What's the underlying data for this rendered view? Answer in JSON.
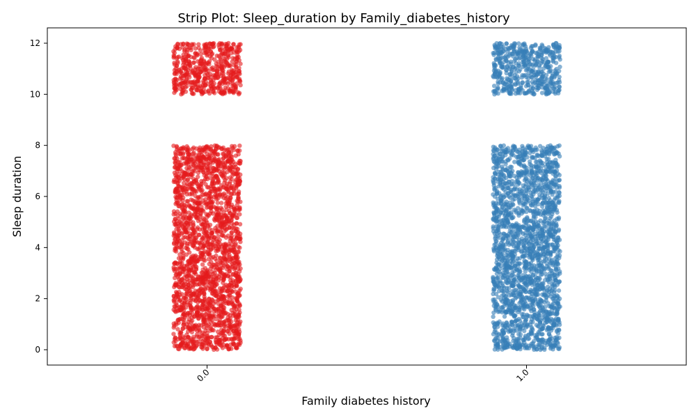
{
  "chart_data": {
    "type": "scatter",
    "subtype": "strip",
    "title": "Strip Plot: Sleep_duration by Family_diabetes_history",
    "xlabel": "Family diabetes history",
    "ylabel": "Sleep duration",
    "categories": [
      "0.0",
      "1.0"
    ],
    "series": [
      {
        "category": "0.0",
        "color": "#e41a1c",
        "value_ranges": [
          [
            0,
            8
          ],
          [
            10,
            12
          ]
        ]
      },
      {
        "category": "1.0",
        "color": "#377eb8",
        "value_ranges": [
          [
            0,
            8
          ],
          [
            10,
            12
          ]
        ]
      }
    ],
    "ylim": [
      -0.6,
      12.6
    ],
    "yticks": [
      0,
      2,
      4,
      6,
      8,
      10,
      12
    ],
    "grid": false,
    "legend": "none"
  }
}
